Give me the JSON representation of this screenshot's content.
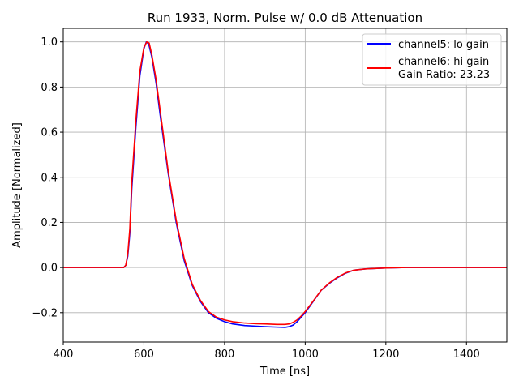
{
  "chart_data": {
    "type": "line",
    "title": "Run 1933, Norm. Pulse w/ 0.0 dB Attenuation",
    "xlabel": "Time [ns]",
    "ylabel": "Amplitude [Normalized]",
    "xlim": [
      400,
      1500
    ],
    "ylim": [
      -0.33,
      1.06
    ],
    "xticks": [
      400,
      600,
      800,
      1000,
      1200,
      1400
    ],
    "yticks": [
      -0.2,
      0.0,
      0.2,
      0.4,
      0.6,
      0.8,
      1.0
    ],
    "ytick_labels": [
      "−0.2",
      "0.0",
      "0.2",
      "0.4",
      "0.6",
      "0.8",
      "1.0"
    ],
    "grid": true,
    "legend_position": "top-right",
    "series": [
      {
        "name": "channel5: lo gain",
        "color": "#0000ff",
        "x": [
          400,
          450,
          500,
          530,
          550,
          555,
          560,
          565,
          570,
          580,
          590,
          600,
          606,
          612,
          620,
          630,
          640,
          650,
          660,
          680,
          700,
          720,
          740,
          760,
          780,
          800,
          820,
          850,
          880,
          900,
          930,
          950,
          960,
          970,
          980,
          990,
          1000,
          1020,
          1040,
          1060,
          1080,
          1100,
          1120,
          1150,
          1200,
          1250,
          1300,
          1400,
          1500
        ],
        "y": [
          0.0,
          0.0,
          0.0,
          0.0,
          0.0,
          0.01,
          0.05,
          0.15,
          0.35,
          0.62,
          0.85,
          0.97,
          1.0,
          0.99,
          0.93,
          0.82,
          0.68,
          0.55,
          0.42,
          0.2,
          0.03,
          -0.08,
          -0.15,
          -0.2,
          -0.225,
          -0.24,
          -0.25,
          -0.257,
          -0.26,
          -0.262,
          -0.264,
          -0.265,
          -0.262,
          -0.255,
          -0.24,
          -0.22,
          -0.2,
          -0.15,
          -0.1,
          -0.07,
          -0.045,
          -0.025,
          -0.012,
          -0.006,
          -0.002,
          0.0,
          0.0,
          0.0,
          0.0
        ]
      },
      {
        "name": "channel6: hi gain",
        "subtitle": "Gain Ratio: 23.23",
        "color": "#ff0000",
        "x": [
          400,
          450,
          500,
          530,
          550,
          555,
          560,
          565,
          570,
          580,
          590,
          600,
          607,
          613,
          620,
          630,
          640,
          650,
          660,
          680,
          700,
          720,
          740,
          760,
          780,
          800,
          820,
          850,
          880,
          900,
          930,
          950,
          960,
          970,
          980,
          990,
          1000,
          1020,
          1040,
          1060,
          1080,
          1100,
          1120,
          1150,
          1200,
          1250,
          1300,
          1400,
          1500
        ],
        "y": [
          0.0,
          0.0,
          0.0,
          0.0,
          0.0,
          0.01,
          0.06,
          0.17,
          0.38,
          0.65,
          0.87,
          0.975,
          1.0,
          0.995,
          0.94,
          0.835,
          0.7,
          0.565,
          0.43,
          0.21,
          0.04,
          -0.075,
          -0.145,
          -0.195,
          -0.22,
          -0.232,
          -0.24,
          -0.246,
          -0.249,
          -0.25,
          -0.252,
          -0.252,
          -0.25,
          -0.243,
          -0.232,
          -0.215,
          -0.195,
          -0.148,
          -0.1,
          -0.068,
          -0.043,
          -0.024,
          -0.012,
          -0.006,
          -0.002,
          0.0,
          0.0,
          0.0,
          0.0
        ]
      }
    ]
  }
}
